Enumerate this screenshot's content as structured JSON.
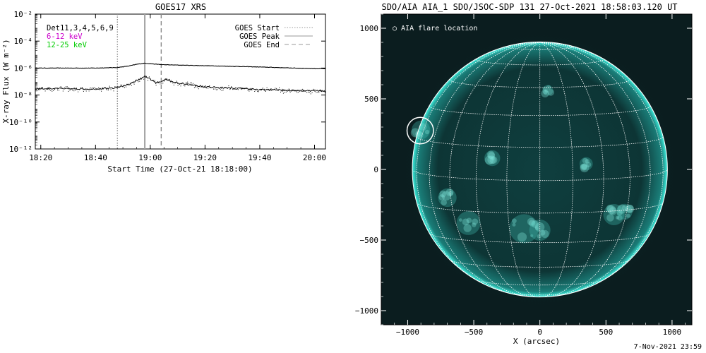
{
  "chart_data": [
    {
      "type": "line",
      "title": "GOES17 XRS",
      "xlabel": "Start Time (27-Oct-21 18:18:00)",
      "ylabel": "X-ray Flux (W m⁻²)",
      "y_scale": "log",
      "ylim": [
        "1e-12",
        "1e-2"
      ],
      "y_tick_labels": [
        "10⁻¹²",
        "10⁻¹⁰",
        "10⁻⁸",
        "10⁻⁶",
        "10⁻⁴",
        "10⁻²"
      ],
      "xlim": [
        "18:18",
        "20:04"
      ],
      "x_tick_labels": [
        "18:20",
        "18:40",
        "19:00",
        "19:20",
        "19:40",
        "20:00"
      ],
      "legend_left": [
        {
          "text": "Det11,3,4,5,6,9",
          "color": "#000000"
        },
        {
          "text": "6-12 keV",
          "color": "#cc00cc"
        },
        {
          "text": "12-25 keV",
          "color": "#00cc00"
        }
      ],
      "legend_right": [
        {
          "name": "GOES Start",
          "style": "dotted"
        },
        {
          "name": "GOES Peak",
          "style": "solid"
        },
        {
          "name": "GOES End",
          "style": "dashed"
        }
      ],
      "markers": {
        "GOES Start": "18:48",
        "GOES Peak": "18:58",
        "GOES End": "19:04"
      },
      "series": [
        {
          "band": "long",
          "x": [
            "18:18",
            "18:30",
            "18:40",
            "18:48",
            "18:52",
            "18:55",
            "18:58",
            "19:00",
            "19:04",
            "19:08",
            "19:20",
            "19:40",
            "20:00",
            "20:04"
          ],
          "y": [
            "1e-6",
            "1e-6",
            "1e-6",
            "1.1e-6",
            "1.4e-6",
            "1.9e-6",
            "2.3e-6",
            "2.1e-6",
            "1.8e-6",
            "1.7e-6",
            "1.5e-6",
            "1.2e-6",
            "9e-7",
            "9e-7"
          ]
        },
        {
          "band": "short",
          "x": [
            "18:18",
            "18:30",
            "18:40",
            "18:48",
            "18:52",
            "18:55",
            "18:58",
            "19:00",
            "19:02",
            "19:04",
            "19:06",
            "19:08",
            "19:20",
            "19:40",
            "20:00",
            "20:04"
          ],
          "y": [
            "3e-8",
            "3e-8",
            "2.8e-8",
            "3.5e-8",
            "6e-8",
            "1.2e-7",
            "2.3e-7",
            "1.5e-7",
            "8e-8",
            "1e-7",
            "1.5e-7",
            "9e-8",
            "4e-8",
            "2.5e-8",
            "2e-8",
            "2e-8"
          ]
        }
      ]
    },
    {
      "type": "image",
      "title": "SDO/AIA AIA_1 SDO/JSOC-SDP 131 27-Oct-2021 18:58:03.120 UT",
      "xlabel": "X (arcsec)",
      "ylabel": "",
      "xlim": [
        -1200,
        1150
      ],
      "ylim": [
        -1100,
        1100
      ],
      "x_ticks": [
        -1000,
        -500,
        0,
        500,
        1000
      ],
      "x_tick_labels": [
        "−1000",
        "−500",
        "0",
        "500",
        "1000"
      ],
      "y_ticks": [
        -1000,
        -500,
        0,
        500,
        1000
      ],
      "y_tick_labels": [
        "−1000",
        "−500",
        "0",
        "500",
        "1000"
      ],
      "solar_radius_arcsec": 965,
      "grid": true,
      "legend": "○ AIA flare location",
      "flare_location": {
        "x": -905,
        "y": 275,
        "radius": 100
      },
      "colors": {
        "background": "#0b1d1f",
        "disk": "#0e3a3a",
        "limb": "#2fd9c9",
        "grid": "#ffffff"
      }
    }
  ],
  "footer": "7-Nov-2021 23:59"
}
